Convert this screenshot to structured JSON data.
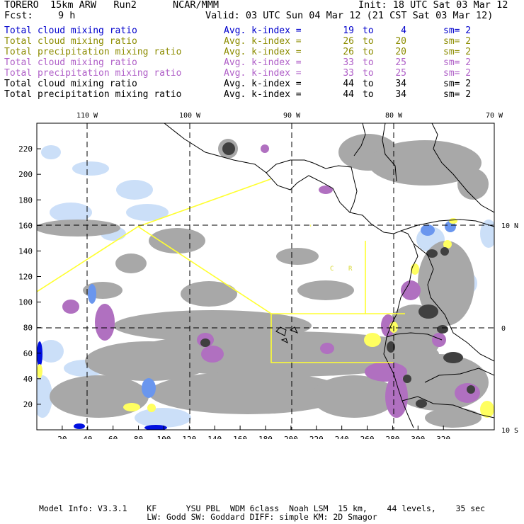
{
  "header": {
    "model": "TORERO  15km ARW   Run2",
    "org": "NCAR/MMM",
    "init": "Init: 18 UTC Sat 03 Mar 12",
    "fcst_label": "Fcst:",
    "fcst_hours": "9 h",
    "valid": "Valid: 03 UTC Sun 04 Mar 12 (21 CST Sat 03 Mar 12)"
  },
  "legend": [
    {
      "label": "Total cloud mixing ratio",
      "avg": "Avg. k-index =",
      "a": "19",
      "to": "to",
      "b": "4",
      "sm": "sm= 2",
      "color": "#0000cc"
    },
    {
      "label": "Total cloud mixing ratio",
      "avg": "Avg. k-index =",
      "a": "26",
      "to": "to",
      "b": "20",
      "sm": "sm= 2",
      "color": "#8c8c00"
    },
    {
      "label": "Total precipitation mixing ratio",
      "avg": "Avg. k-index =",
      "a": "26",
      "to": "to",
      "b": "20",
      "sm": "sm= 2",
      "color": "#8c8c00"
    },
    {
      "label": "Total cloud mixing ratio",
      "avg": "Avg. k-index =",
      "a": "33",
      "to": "to",
      "b": "25",
      "sm": "sm= 2",
      "color": "#b060c8"
    },
    {
      "label": "Total precipitation mixing ratio",
      "avg": "Avg. k-index =",
      "a": "33",
      "to": "to",
      "b": "25",
      "sm": "sm= 2",
      "color": "#b060c8"
    },
    {
      "label": "Total cloud mixing ratio",
      "avg": "Avg. k-index =",
      "a": "44",
      "to": "to",
      "b": "34",
      "sm": "sm= 2",
      "color": "#000000"
    },
    {
      "label": "Total precipitation mixing ratio",
      "avg": "Avg. k-index =",
      "a": "44",
      "to": "to",
      "b": "34",
      "sm": "sm= 2",
      "color": "#000000"
    }
  ],
  "map": {
    "x_ticks": [
      "20",
      "40",
      "60",
      "80",
      "100",
      "120",
      "140",
      "160",
      "180",
      "200",
      "220",
      "240",
      "260",
      "280",
      "300",
      "320"
    ],
    "y_ticks": [
      "20",
      "40",
      "60",
      "80",
      "100",
      "120",
      "140",
      "160",
      "180",
      "200",
      "220"
    ],
    "lon_labels": [
      "110 W",
      "100 W",
      "90 W",
      "80 W",
      "70 W"
    ],
    "lat_labels": [
      "10 N",
      "0",
      "10 S"
    ],
    "region_labels": [
      "C",
      "R"
    ],
    "colors": {
      "light_blue": "#c6dcf8",
      "mid_blue": "#6a96ee",
      "dark_blue": "#0010e0",
      "yellow": "#ffff60",
      "purple": "#b070c0",
      "gray": "#a8a8a8",
      "dark_gray": "#404040",
      "boundary_yellow": "#ffff30"
    }
  },
  "footer": {
    "line1": "Model Info: V3.3.1    KF      YSU PBL  WDM 6class  Noah LSM  15 km,    44 levels,    35 sec",
    "line2": "LW: Godd SW: Goddard DIFF: simple KM: 2D Smagor"
  }
}
